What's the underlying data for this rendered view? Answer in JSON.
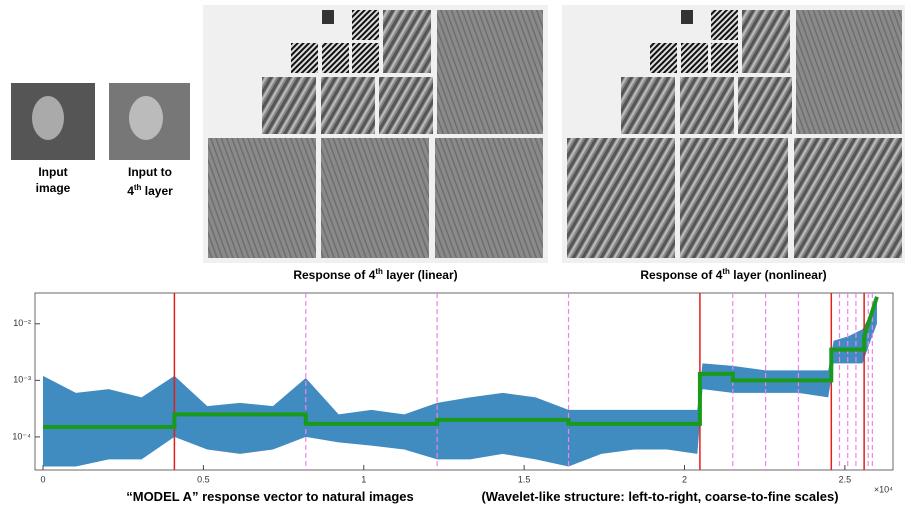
{
  "header": {
    "input_image": [
      "Input",
      "image"
    ],
    "input_layer": {
      "line1": "Input to",
      "base": "4",
      "sup": "th",
      "rest": " layer"
    },
    "linear_caption": {
      "base": "Response of 4",
      "sup": "th",
      "rest": " layer (linear)"
    },
    "nonlinear_caption": {
      "base": "Response of 4",
      "sup": "th",
      "rest": " layer (nonlinear)"
    }
  },
  "chart_data": {
    "type": "band-step",
    "x_label_left": "“MODEL A” response vector to natural images",
    "x_label_right": "(Wavelet-like structure: left-to-right, coarse-to-fine scales)",
    "x_exponent": "×10⁴",
    "xlim": [
      -250,
      26500
    ],
    "ylim": [
      2.6e-05,
      0.035
    ],
    "log_y": true,
    "xticks": [
      {
        "value": 0,
        "label": "0"
      },
      {
        "value": 5000,
        "label": "0.5"
      },
      {
        "value": 10000,
        "label": "1"
      },
      {
        "value": 15000,
        "label": "1.5"
      },
      {
        "value": 20000,
        "label": "2"
      },
      {
        "value": 25000,
        "label": "2.5"
      }
    ],
    "yticks": [
      {
        "value": 0.0001,
        "label": "10⁻⁴"
      },
      {
        "value": 0.001,
        "label": "10⁻³"
      },
      {
        "value": 0.01,
        "label": "10⁻²"
      }
    ],
    "band": {
      "color": "#1f77b4",
      "x": [
        0,
        1024,
        2048,
        3072,
        4096,
        5120,
        6144,
        7168,
        8192,
        9216,
        10240,
        11264,
        12288,
        13312,
        14336,
        15360,
        16384,
        17408,
        18432,
        19456,
        20400,
        20560,
        21504,
        22528,
        23552,
        24480,
        24650,
        25100,
        25550,
        25800,
        26000
      ],
      "high": [
        0.0012,
        0.0006,
        0.0007,
        0.0005,
        0.0012,
        0.00035,
        0.0004,
        0.00035,
        0.0011,
        0.00025,
        0.0003,
        0.00025,
        0.0004,
        0.0005,
        0.0006,
        0.0005,
        0.0003,
        0.0003,
        0.0003,
        0.0003,
        0.0003,
        0.002,
        0.0018,
        0.0015,
        0.0015,
        0.0015,
        0.005,
        0.006,
        0.008,
        0.015,
        0.03
      ],
      "low": [
        3e-05,
        3e-05,
        4e-05,
        4e-05,
        0.0001,
        6e-05,
        5e-05,
        6e-05,
        0.0001,
        8e-05,
        7e-05,
        6e-05,
        4e-05,
        4e-05,
        5e-05,
        4e-05,
        3e-05,
        5e-05,
        6e-05,
        6e-05,
        5e-05,
        0.0007,
        0.0006,
        0.0006,
        0.0006,
        0.0005,
        0.002,
        0.002,
        0.002,
        0.005,
        0.01
      ]
    },
    "steps": {
      "color": "#1a9a1a",
      "x": [
        0,
        4096,
        4096,
        8192,
        8192,
        12288,
        12288,
        16384,
        16384,
        20480,
        20480,
        21504,
        21504,
        24576,
        24576,
        25600,
        25600,
        26000
      ],
      "values": [
        0.00015,
        0.00015,
        0.00025,
        0.00025,
        0.00017,
        0.00017,
        0.0002,
        0.0002,
        0.00017,
        0.00017,
        0.0013,
        0.0013,
        0.001,
        0.001,
        0.0035,
        0.0035,
        0.006,
        0.03
      ]
    },
    "red_lines": {
      "color": "#e0201c",
      "x": [
        4096,
        20480,
        24576,
        25600
      ]
    },
    "dashed_lines": {
      "color": "#ee82ee",
      "x": [
        8192,
        12288,
        16384,
        21504,
        22528,
        23552,
        24832,
        25088,
        25344,
        25728,
        25856
      ]
    }
  }
}
